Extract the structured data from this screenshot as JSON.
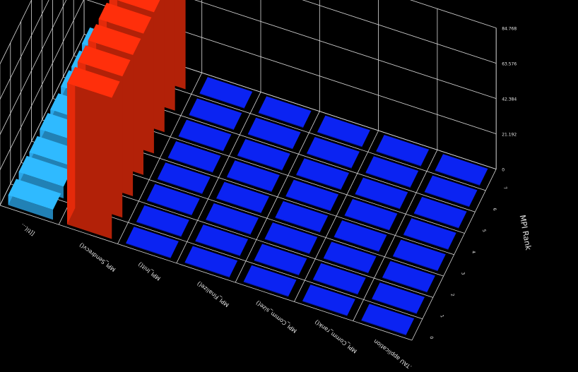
{
  "chart_data": {
    "type": "bar3d",
    "z_ticks": [
      "0",
      "21.192",
      "42.384",
      "63.576",
      "84.768"
    ],
    "z_ticks_right": [
      "0",
      "21.192",
      "42.384",
      "63.576",
      "84.768"
    ],
    "x_labels": [
      ".TAU application",
      "MPI_Comm_rank()",
      "MPI_Comm_size()",
      "MPI_Finalize()",
      "MPI_Init()",
      "MPI_Sendrecv()",
      "[[ti(..."
    ],
    "y_axis_label": "MPI Rank",
    "y_ticks": [
      "0",
      "1",
      "2",
      "3",
      "4",
      "5",
      "6",
      "7"
    ],
    "series": [
      {
        "x": 0,
        "values": [
          0,
          0,
          0,
          0,
          0,
          0,
          0,
          0
        ],
        "color": "#0a1fd8"
      },
      {
        "x": 1,
        "values": [
          0,
          0,
          0,
          0,
          0,
          0,
          0,
          0
        ],
        "color": "#0a1fd8"
      },
      {
        "x": 2,
        "values": [
          0,
          0,
          0,
          0,
          0,
          0,
          0,
          0
        ],
        "color": "#0a1fd8"
      },
      {
        "x": 3,
        "values": [
          0,
          0,
          0,
          0,
          0,
          0,
          0,
          0
        ],
        "color": "#0a1fd8"
      },
      {
        "x": 4,
        "values": [
          0,
          0,
          0,
          0,
          0,
          0,
          0,
          0
        ],
        "color": "#0a1fd8"
      },
      {
        "x": 5,
        "values": [
          84.8,
          84.8,
          84.8,
          84.8,
          84.8,
          84.8,
          84.8,
          84.8
        ],
        "color": "#e42a0a"
      },
      {
        "x": 6,
        "values": [
          6,
          7,
          6,
          7,
          6,
          7,
          6,
          7
        ],
        "color": "#2aa6e8"
      }
    ],
    "zlim": [
      0,
      84.768
    ]
  }
}
